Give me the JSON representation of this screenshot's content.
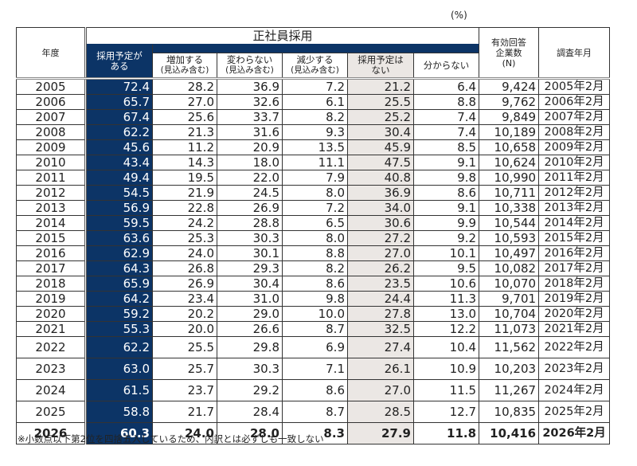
{
  "unit_label": "(%)",
  "header": {
    "year": "年度",
    "group_title": "正社員採用",
    "plan_yes": "採用予定が\nある",
    "plan_yes_line1": "採用予定が",
    "plan_yes_line2": "ある",
    "increase_line1": "増加する",
    "increase_line2": "(見込み含む)",
    "same_line1": "変わらない",
    "same_line2": "(見込み含む)",
    "decrease_line1": "減少する",
    "decrease_line2": "(見込み含む)",
    "plan_no_line1": "採用予定は",
    "plan_no_line2": "ない",
    "unknown": "分からない",
    "n_line1": "有効回答",
    "n_line2": "企業数",
    "n_line3": "(N)",
    "survey": "調査年月"
  },
  "colors": {
    "navy": "#0c3466",
    "grey": "#ebe7e4"
  },
  "rows": [
    {
      "year": "2005",
      "yes": "72.4",
      "inc": "28.2",
      "same": "36.9",
      "dec": "7.2",
      "no": "21.2",
      "unk": "6.4",
      "n": "9,424",
      "date": "2005年2月"
    },
    {
      "year": "2006",
      "yes": "65.7",
      "inc": "27.0",
      "same": "32.6",
      "dec": "6.1",
      "no": "25.5",
      "unk": "8.8",
      "n": "9,762",
      "date": "2006年2月"
    },
    {
      "year": "2007",
      "yes": "67.4",
      "inc": "25.6",
      "same": "33.7",
      "dec": "8.2",
      "no": "25.2",
      "unk": "7.4",
      "n": "9,849",
      "date": "2007年2月"
    },
    {
      "year": "2008",
      "yes": "62.2",
      "inc": "21.3",
      "same": "31.6",
      "dec": "9.3",
      "no": "30.4",
      "unk": "7.4",
      "n": "10,189",
      "date": "2008年2月"
    },
    {
      "year": "2009",
      "yes": "45.6",
      "inc": "11.2",
      "same": "20.9",
      "dec": "13.5",
      "no": "45.9",
      "unk": "8.5",
      "n": "10,658",
      "date": "2009年2月"
    },
    {
      "year": "2010",
      "yes": "43.4",
      "inc": "14.3",
      "same": "18.0",
      "dec": "11.1",
      "no": "47.5",
      "unk": "9.1",
      "n": "10,624",
      "date": "2010年2月"
    },
    {
      "year": "2011",
      "yes": "49.4",
      "inc": "19.5",
      "same": "22.0",
      "dec": "7.9",
      "no": "40.8",
      "unk": "9.8",
      "n": "10,990",
      "date": "2011年2月"
    },
    {
      "year": "2012",
      "yes": "54.5",
      "inc": "21.9",
      "same": "24.5",
      "dec": "8.0",
      "no": "36.9",
      "unk": "8.6",
      "n": "10,711",
      "date": "2012年2月"
    },
    {
      "year": "2013",
      "yes": "56.9",
      "inc": "22.8",
      "same": "26.9",
      "dec": "7.2",
      "no": "34.0",
      "unk": "9.1",
      "n": "10,338",
      "date": "2013年2月"
    },
    {
      "year": "2014",
      "yes": "59.5",
      "inc": "24.2",
      "same": "28.8",
      "dec": "6.5",
      "no": "30.6",
      "unk": "9.9",
      "n": "10,544",
      "date": "2014年2月"
    },
    {
      "year": "2015",
      "yes": "63.6",
      "inc": "25.3",
      "same": "30.3",
      "dec": "8.0",
      "no": "27.2",
      "unk": "9.2",
      "n": "10,593",
      "date": "2015年2月"
    },
    {
      "year": "2016",
      "yes": "62.9",
      "inc": "24.0",
      "same": "30.1",
      "dec": "8.8",
      "no": "27.0",
      "unk": "10.1",
      "n": "10,497",
      "date": "2016年2月"
    },
    {
      "year": "2017",
      "yes": "64.3",
      "inc": "26.8",
      "same": "29.3",
      "dec": "8.2",
      "no": "26.2",
      "unk": "9.5",
      "n": "10,082",
      "date": "2017年2月"
    },
    {
      "year": "2018",
      "yes": "65.9",
      "inc": "26.9",
      "same": "30.4",
      "dec": "8.6",
      "no": "23.5",
      "unk": "10.6",
      "n": "10,070",
      "date": "2018年2月"
    },
    {
      "year": "2019",
      "yes": "64.2",
      "inc": "23.4",
      "same": "31.0",
      "dec": "9.8",
      "no": "24.4",
      "unk": "11.3",
      "n": "9,701",
      "date": "2019年2月"
    },
    {
      "year": "2020",
      "yes": "59.2",
      "inc": "20.2",
      "same": "29.0",
      "dec": "10.0",
      "no": "27.8",
      "unk": "13.0",
      "n": "10,704",
      "date": "2020年2月"
    },
    {
      "year": "2021",
      "yes": "55.3",
      "inc": "20.0",
      "same": "26.6",
      "dec": "8.7",
      "no": "32.5",
      "unk": "12.2",
      "n": "11,073",
      "date": "2021年2月"
    },
    {
      "year": "2022",
      "yes": "62.2",
      "inc": "25.5",
      "same": "29.8",
      "dec": "6.9",
      "no": "27.4",
      "unk": "10.4",
      "n": "11,562",
      "date": "2022年2月"
    },
    {
      "year": "2023",
      "yes": "63.0",
      "inc": "25.7",
      "same": "30.3",
      "dec": "7.1",
      "no": "26.1",
      "unk": "10.9",
      "n": "10,203",
      "date": "2023年2月"
    },
    {
      "year": "2024",
      "yes": "61.5",
      "inc": "23.7",
      "same": "29.2",
      "dec": "8.6",
      "no": "27.0",
      "unk": "11.5",
      "n": "11,267",
      "date": "2024年2月"
    },
    {
      "year": "2025",
      "yes": "58.8",
      "inc": "21.7",
      "same": "28.4",
      "dec": "8.7",
      "no": "28.5",
      "unk": "12.7",
      "n": "10,835",
      "date": "2025年2月"
    },
    {
      "year": "2026",
      "yes": "60.3",
      "inc": "24.0",
      "same": "28.0",
      "dec": "8.3",
      "no": "27.9",
      "unk": "11.8",
      "n": "10,416",
      "date": "2026年2月"
    }
  ],
  "footnote": "※小数点以下第2位を四捨五入しているため、内訳とは必ずしも一致しない"
}
